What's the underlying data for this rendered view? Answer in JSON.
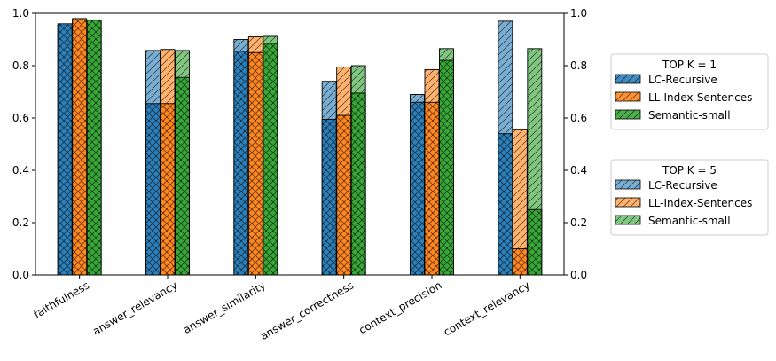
{
  "chart_data": {
    "type": "bar",
    "categories": [
      "faithfulness",
      "answer_relevancy",
      "answer_similarity",
      "answer_correctness",
      "context_precision",
      "context_relevancy"
    ],
    "ylim": [
      0,
      1.0
    ],
    "yticks": [
      "0.0",
      "0.2",
      "0.4",
      "0.6",
      "0.8",
      "1.0"
    ],
    "groups": [
      {
        "title": "TOP K = 1",
        "hatch": "cross",
        "series": [
          {
            "name": "LC-Recursive",
            "values": [
              0.96,
              0.655,
              0.855,
              0.595,
              0.66,
              0.54
            ]
          },
          {
            "name": "LL-Index-Sentences",
            "values": [
              0.98,
              0.655,
              0.85,
              0.61,
              0.66,
              0.1
            ]
          },
          {
            "name": "Semantic-small",
            "values": [
              0.975,
              0.755,
              0.885,
              0.695,
              0.82,
              0.25
            ]
          }
        ]
      },
      {
        "title": "TOP K = 5",
        "hatch": "diag",
        "series": [
          {
            "name": "LC-Recursive",
            "values": [
              0.955,
              0.858,
              0.9,
              0.74,
              0.69,
              0.97
            ]
          },
          {
            "name": "LL-Index-Sentences",
            "values": [
              0.975,
              0.862,
              0.91,
              0.795,
              0.785,
              0.555
            ]
          },
          {
            "name": "Semantic-small",
            "values": [
              0.972,
              0.858,
              0.912,
              0.8,
              0.865,
              0.865
            ]
          }
        ]
      }
    ],
    "colors": {
      "LC-Recursive": "#1f77b4",
      "LL-Index-Sentences": "#ff7f0e",
      "Semantic-small": "#2ca02c"
    }
  }
}
